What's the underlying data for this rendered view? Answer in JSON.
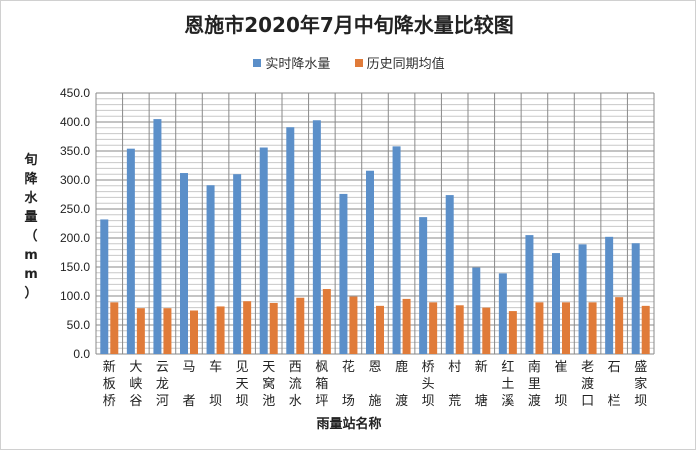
{
  "chart_data": {
    "type": "bar",
    "title": "恩施市2020年7月中旬降水量比较图",
    "xlabel": "雨量站名称",
    "ylabel": "旬降水量（mm）",
    "ylim": [
      0,
      450
    ],
    "yticks": [
      "0.0",
      "50.0",
      "100.0",
      "150.0",
      "200.0",
      "250.0",
      "300.0",
      "350.0",
      "400.0",
      "450.0"
    ],
    "grid": true,
    "legend_position": "top",
    "categories": [
      "新板桥",
      "大峡谷",
      "云龙河",
      "马者",
      "车坝",
      "见天坝",
      "天窝池",
      "西流水",
      "枫箱坪",
      "花场",
      "恩施",
      "鹿渡",
      "桥头坝",
      "村荒",
      "新塘",
      "红土溪",
      "南里渡",
      "崔坝",
      "老渡口",
      "石栏",
      "盛家坝"
    ],
    "series": [
      {
        "name": "实时降水量",
        "color": "#5b8fc9",
        "values": [
          232,
          354,
          405,
          312,
          291,
          310,
          356,
          391,
          403,
          276,
          316,
          358,
          236,
          274,
          149,
          139,
          205,
          174,
          189,
          202,
          191
        ]
      },
      {
        "name": "历史同期均值",
        "color": "#e07b39",
        "values": [
          89,
          79,
          79,
          75,
          82,
          91,
          88,
          97,
          112,
          99,
          83,
          95,
          89,
          84,
          80,
          74,
          89,
          89,
          89,
          98,
          83
        ]
      }
    ]
  }
}
